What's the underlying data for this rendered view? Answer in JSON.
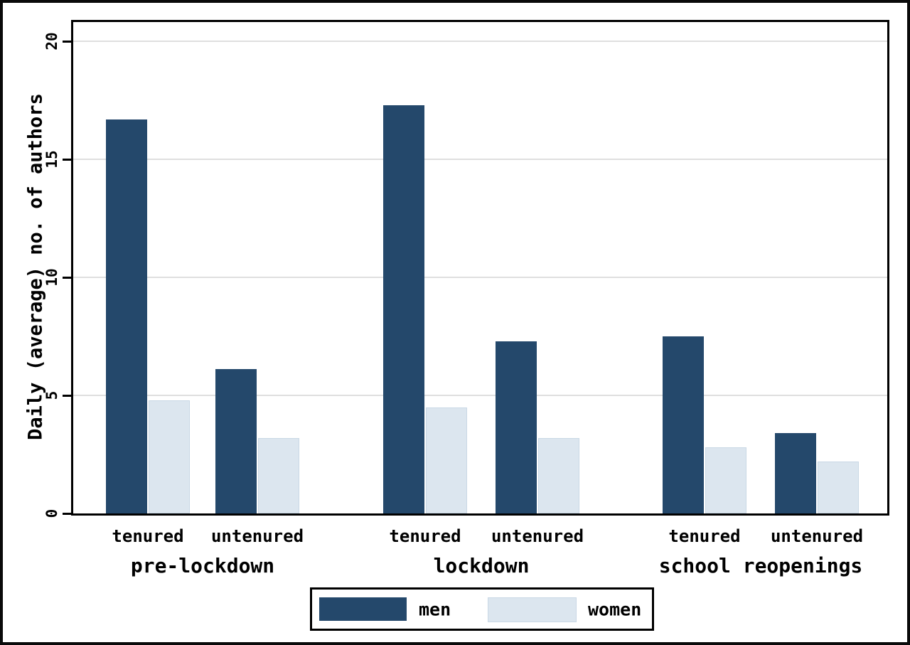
{
  "chart_data": {
    "type": "bar",
    "title": "",
    "xlabel": "",
    "ylabel": "Daily (average) no. of authors",
    "ylim": [
      0,
      20.81
    ],
    "yticks": [
      0,
      5,
      10,
      15,
      20
    ],
    "grid": "horizontal",
    "legend_position": "bottom",
    "groups": [
      {
        "label": "pre-lockdown",
        "categories": [
          "tenured",
          "untenured"
        ]
      },
      {
        "label": "lockdown",
        "categories": [
          "tenured",
          "untenured"
        ]
      },
      {
        "label": "school reopenings",
        "categories": [
          "tenured",
          "untenured"
        ]
      }
    ],
    "category_order": [
      "pre-lockdown tenured",
      "pre-lockdown untenured",
      "lockdown tenured",
      "lockdown untenured",
      "school reopenings tenured",
      "school reopenings untenured"
    ],
    "series": [
      {
        "name": "men",
        "color": "#24486b",
        "values": [
          16.7,
          6.1,
          17.3,
          7.3,
          7.5,
          3.4
        ]
      },
      {
        "name": "women",
        "color": "#dce6ef",
        "border_color": "#c9d8e5",
        "values": [
          4.8,
          3.2,
          4.5,
          3.2,
          2.8,
          2.2
        ]
      }
    ],
    "colors": {
      "axis": "#000000",
      "gridline": "#dfdfdf",
      "frame": "#0a0a0a",
      "background": "#ffffff"
    }
  }
}
